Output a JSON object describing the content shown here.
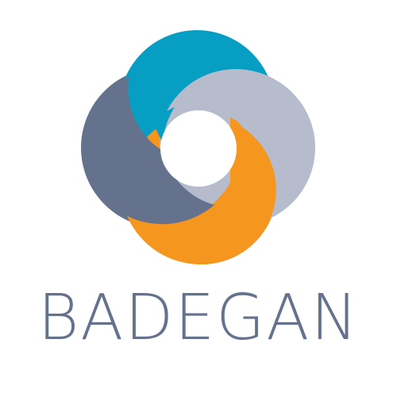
{
  "brand": {
    "name": "BADEGAN",
    "colors": {
      "teal": "#079ec4",
      "light_gray": "#b6bccc",
      "orange": "#f5961f",
      "slate": "#64728d",
      "background": "#ffffff"
    }
  },
  "logo": {
    "icon": "swirl-logo-icon"
  }
}
